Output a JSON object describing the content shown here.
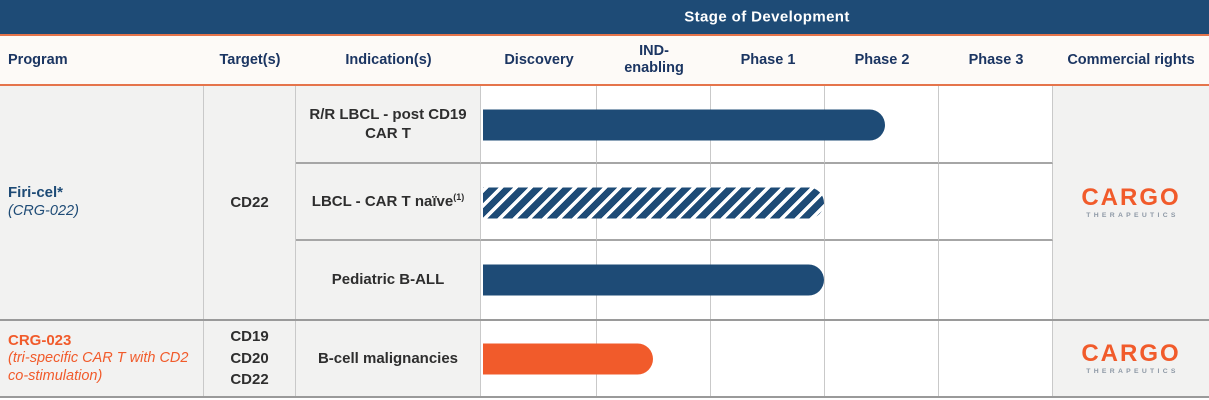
{
  "stage_header": "Stage of Development",
  "columns": {
    "program": "Program",
    "targets": "Target(s)",
    "indications": "Indication(s)",
    "stages": [
      "Discovery",
      "IND-enabling",
      "Phase 1",
      "Phase 2",
      "Phase 3"
    ],
    "commercial": "Commercial rights"
  },
  "logo": {
    "name": "CARGO",
    "sub": "THERAPEUTICS"
  },
  "programs": [
    {
      "name": "Firi-cel*",
      "code": "(CRG-022)",
      "targets": [
        "CD22"
      ],
      "indications": [
        {
          "label": "R/R LBCL - post CD19 CAR T",
          "footnote": ""
        },
        {
          "label": "LBCL - CAR T naïve",
          "footnote": "(1)"
        },
        {
          "label": "Pediatric B-ALL",
          "footnote": ""
        }
      ]
    },
    {
      "name": "CRG-023",
      "code": "(tri-specific CAR T with CD2 co-stimulation)",
      "targets": [
        "CD19",
        "CD20",
        "CD22"
      ],
      "indications": [
        {
          "label": "B-cell malignancies",
          "footnote": ""
        }
      ]
    }
  ],
  "chart_data": {
    "type": "bar",
    "title": "Stage of Development",
    "stage_axis": [
      "Discovery",
      "IND-enabling",
      "Phase 1",
      "Phase 2",
      "Phase 3"
    ],
    "xlim": [
      0,
      5
    ],
    "categories": [
      "R/R LBCL - post CD19 CAR T",
      "LBCL - CAR T naïve (1)",
      "Pediatric B-ALL",
      "B-cell malignancies"
    ],
    "bars": [
      {
        "program": "Firi-cel* (CRG-022)",
        "indication": "R/R LBCL - post CD19 CAR T",
        "stage_progress": 3.53,
        "stage_reached": "mid Phase 2",
        "pattern": "solid",
        "color": "#1e4b76"
      },
      {
        "program": "Firi-cel* (CRG-022)",
        "indication": "LBCL - CAR T naïve (1)",
        "stage_progress": 3.0,
        "stage_reached": "end of Phase 1",
        "pattern": "hatched",
        "color": "#1e4b76"
      },
      {
        "program": "Firi-cel* (CRG-022)",
        "indication": "Pediatric B-ALL",
        "stage_progress": 3.0,
        "stage_reached": "end of Phase 1",
        "pattern": "solid",
        "color": "#1e4b76"
      },
      {
        "program": "CRG-023",
        "indication": "B-cell malignancies",
        "stage_progress": 1.5,
        "stage_reached": "mid IND-enabling",
        "pattern": "solid",
        "color": "#f15b2b"
      }
    ],
    "colors": {
      "navy": "#1e4b76",
      "orange": "#f15b2b",
      "accent_line": "#e5744b"
    },
    "legend_position": "none",
    "grid": true
  }
}
